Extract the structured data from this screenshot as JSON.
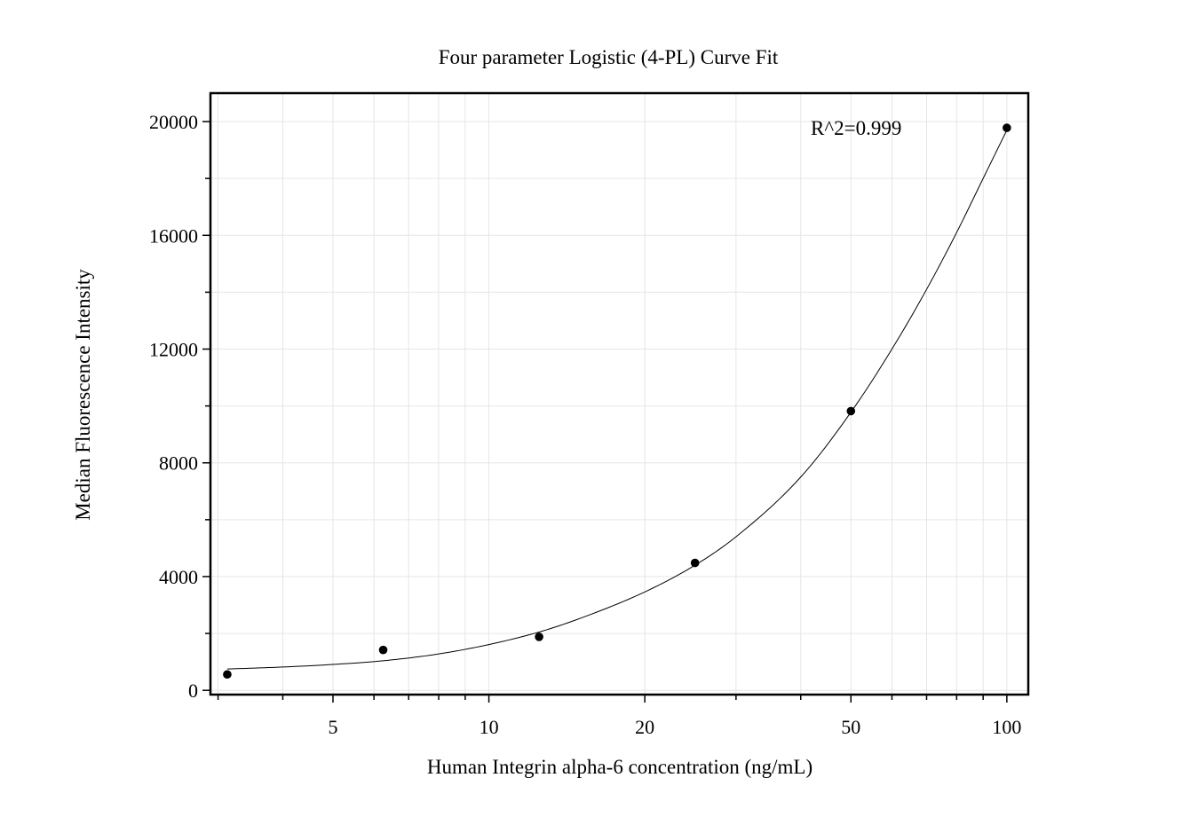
{
  "chart_data": {
    "type": "scatter",
    "title": "Four parameter Logistic (4-PL) Curve Fit",
    "xlabel": "Human Integrin alpha-6 concentration (ng/mL)",
    "ylabel": "Median Fluorescence Intensity",
    "x_scale": "log",
    "xlim": [
      2.9,
      110
    ],
    "ylim": [
      -150,
      21000
    ],
    "x_ticks": [
      5,
      10,
      20,
      50,
      100
    ],
    "x_tick_labels": [
      "5",
      "10",
      "20",
      "50",
      "100"
    ],
    "y_ticks": [
      0,
      4000,
      8000,
      12000,
      16000,
      20000
    ],
    "y_tick_labels": [
      "0",
      "4000",
      "8000",
      "12000",
      "16000",
      "20000"
    ],
    "grid": true,
    "annotation": "R^2=0.999",
    "series": [
      {
        "marker": "circle",
        "x": [
          3.125,
          6.25,
          12.5,
          25,
          50,
          100
        ],
        "y": [
          560,
          1420,
          1880,
          4480,
          9820,
          19780
        ]
      }
    ],
    "fit_curve": {
      "x": [
        3.125,
        4,
        5,
        6.25,
        8,
        10,
        12.5,
        15,
        20,
        25,
        30,
        40,
        50,
        60,
        70,
        80,
        90,
        100
      ],
      "y": [
        750,
        820,
        910,
        1040,
        1280,
        1610,
        2050,
        2530,
        3460,
        4400,
        5400,
        7500,
        9780,
        12000,
        14100,
        16100,
        18000,
        19700
      ]
    }
  }
}
